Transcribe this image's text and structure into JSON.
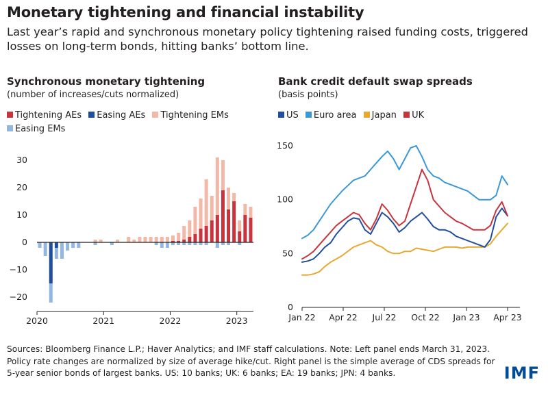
{
  "title": "Monetary tightening and financial instability",
  "subtitle": "Last year’s rapid and synchronous monetary policy tightening raised funding costs, triggered losses on long-term bonds, hitting banks’ bottom line.",
  "source": "Sources: Bloomberg Finance L.P.; Haver Analytics; and IMF staff calculations. Note: Left panel ends March 31, 2023. Policy rate changes are normalized by size of average hike/cut. Right panel is the simple average of CDS spreads for 5-year senior bonds of largest banks. US: 10 banks; UK: 6 banks; EA: 19 banks; JPN: 4 banks.",
  "logo": "IMF",
  "colors": {
    "tightening_aes": "#c8343d",
    "easing_aes": "#1f4e9c",
    "tightening_ems": "#f2b8a8",
    "easing_ems": "#93b7e0",
    "us": "#1f4e9c",
    "euro_area": "#3b98d6",
    "japan": "#e8a830",
    "uk": "#c8343d"
  },
  "chart_data": [
    {
      "type": "bar",
      "title": "Synchronous monetary tightening",
      "subtitle": "(number of increases/cuts normalized)",
      "x_ticks": [
        "2020",
        "2021",
        "2022",
        "2023"
      ],
      "ylim": [
        -24,
        32
      ],
      "y_ticks": [
        30,
        20,
        10,
        0,
        -10,
        -20
      ],
      "stacked": true,
      "categories": [
        "Jan 20",
        "Feb 20",
        "Mar 20",
        "Apr 20",
        "May 20",
        "Jun 20",
        "Jul 20",
        "Aug 20",
        "Sep 20",
        "Oct 20",
        "Nov 20",
        "Dec 20",
        "Jan 21",
        "Feb 21",
        "Mar 21",
        "Apr 21",
        "May 21",
        "Jun 21",
        "Jul 21",
        "Aug 21",
        "Sep 21",
        "Oct 21",
        "Nov 21",
        "Dec 21",
        "Jan 22",
        "Feb 22",
        "Mar 22",
        "Apr 22",
        "May 22",
        "Jun 22",
        "Jul 22",
        "Aug 22",
        "Sep 22",
        "Oct 22",
        "Nov 22",
        "Dec 22",
        "Jan 23",
        "Feb 23",
        "Mar 23"
      ],
      "series": [
        {
          "name": "Tightening AEs",
          "values": [
            0,
            0,
            0,
            0,
            0,
            0,
            0,
            0,
            0,
            0,
            0,
            0,
            0,
            0,
            0,
            0,
            0,
            0,
            0,
            0,
            0,
            0,
            0,
            0,
            0.5,
            0.5,
            1,
            2,
            3,
            5,
            6,
            8,
            10,
            19,
            12,
            15,
            4,
            10,
            9
          ]
        },
        {
          "name": "Easing AEs",
          "values": [
            0,
            0,
            -15,
            -2,
            0,
            0,
            0,
            0,
            0,
            0,
            0,
            0,
            0,
            0,
            0,
            0,
            0,
            0,
            0,
            0,
            0,
            0,
            0,
            0,
            0,
            0,
            0,
            0,
            0,
            0,
            0,
            0,
            0,
            0,
            0,
            0,
            0,
            0,
            0
          ]
        },
        {
          "name": "Tightening EMs",
          "values": [
            0,
            0,
            0,
            0,
            0,
            0,
            0,
            0,
            0,
            0,
            1,
            1,
            0,
            0,
            1,
            0,
            2,
            1,
            2,
            2,
            2,
            2,
            2,
            2,
            2,
            3,
            5,
            6,
            10,
            11,
            17,
            9,
            21,
            11,
            8,
            3,
            4,
            4,
            4
          ]
        },
        {
          "name": "Easing EMs",
          "values": [
            -2,
            -5,
            -7,
            -4,
            -6,
            -3,
            -2,
            -2,
            0,
            0,
            -1,
            0,
            0,
            -1,
            0,
            0,
            0,
            0,
            0,
            0,
            0,
            -1,
            -2,
            -2,
            -1,
            -1,
            -1,
            -1,
            -1,
            -1,
            -1,
            0,
            -2,
            -1,
            -1,
            0,
            -1,
            0,
            0
          ]
        }
      ]
    },
    {
      "type": "line",
      "title": "Bank credit default swap spreads",
      "subtitle": "(basis points)",
      "x_ticks": [
        "Jan 22",
        "Apr 22",
        "Jul 22",
        "Oct 22",
        "Jan 23",
        "Apr 23"
      ],
      "x_range": [
        "Jan 22",
        "Apr 23"
      ],
      "ylim": [
        0,
        150
      ],
      "y_ticks": [
        150,
        100,
        50,
        0
      ],
      "series": [
        {
          "name": "US",
          "values": [
            42,
            43,
            45,
            50,
            56,
            60,
            68,
            74,
            80,
            83,
            82,
            72,
            68,
            78,
            88,
            84,
            78,
            70,
            74,
            80,
            84,
            88,
            82,
            75,
            72,
            72,
            70,
            66,
            64,
            62,
            60,
            58,
            56,
            63,
            84,
            92,
            85
          ]
        },
        {
          "name": "Euro area",
          "values": [
            64,
            67,
            72,
            80,
            88,
            96,
            102,
            108,
            113,
            118,
            120,
            122,
            128,
            134,
            140,
            145,
            138,
            128,
            138,
            148,
            150,
            140,
            128,
            122,
            120,
            116,
            114,
            112,
            110,
            108,
            104,
            100,
            100,
            100,
            104,
            122,
            114
          ]
        },
        {
          "name": "Japan",
          "values": [
            30,
            30,
            31,
            33,
            38,
            42,
            45,
            48,
            52,
            56,
            58,
            60,
            62,
            58,
            56,
            52,
            50,
            50,
            52,
            52,
            55,
            54,
            53,
            52,
            54,
            56,
            56,
            56,
            55,
            56,
            56,
            56,
            56,
            59,
            66,
            72,
            78
          ]
        },
        {
          "name": "UK",
          "values": [
            45,
            48,
            52,
            58,
            64,
            70,
            76,
            80,
            84,
            88,
            86,
            78,
            72,
            82,
            96,
            90,
            82,
            76,
            80,
            96,
            112,
            128,
            118,
            100,
            94,
            88,
            84,
            80,
            78,
            75,
            72,
            72,
            72,
            76,
            90,
            98,
            85
          ]
        }
      ]
    }
  ]
}
